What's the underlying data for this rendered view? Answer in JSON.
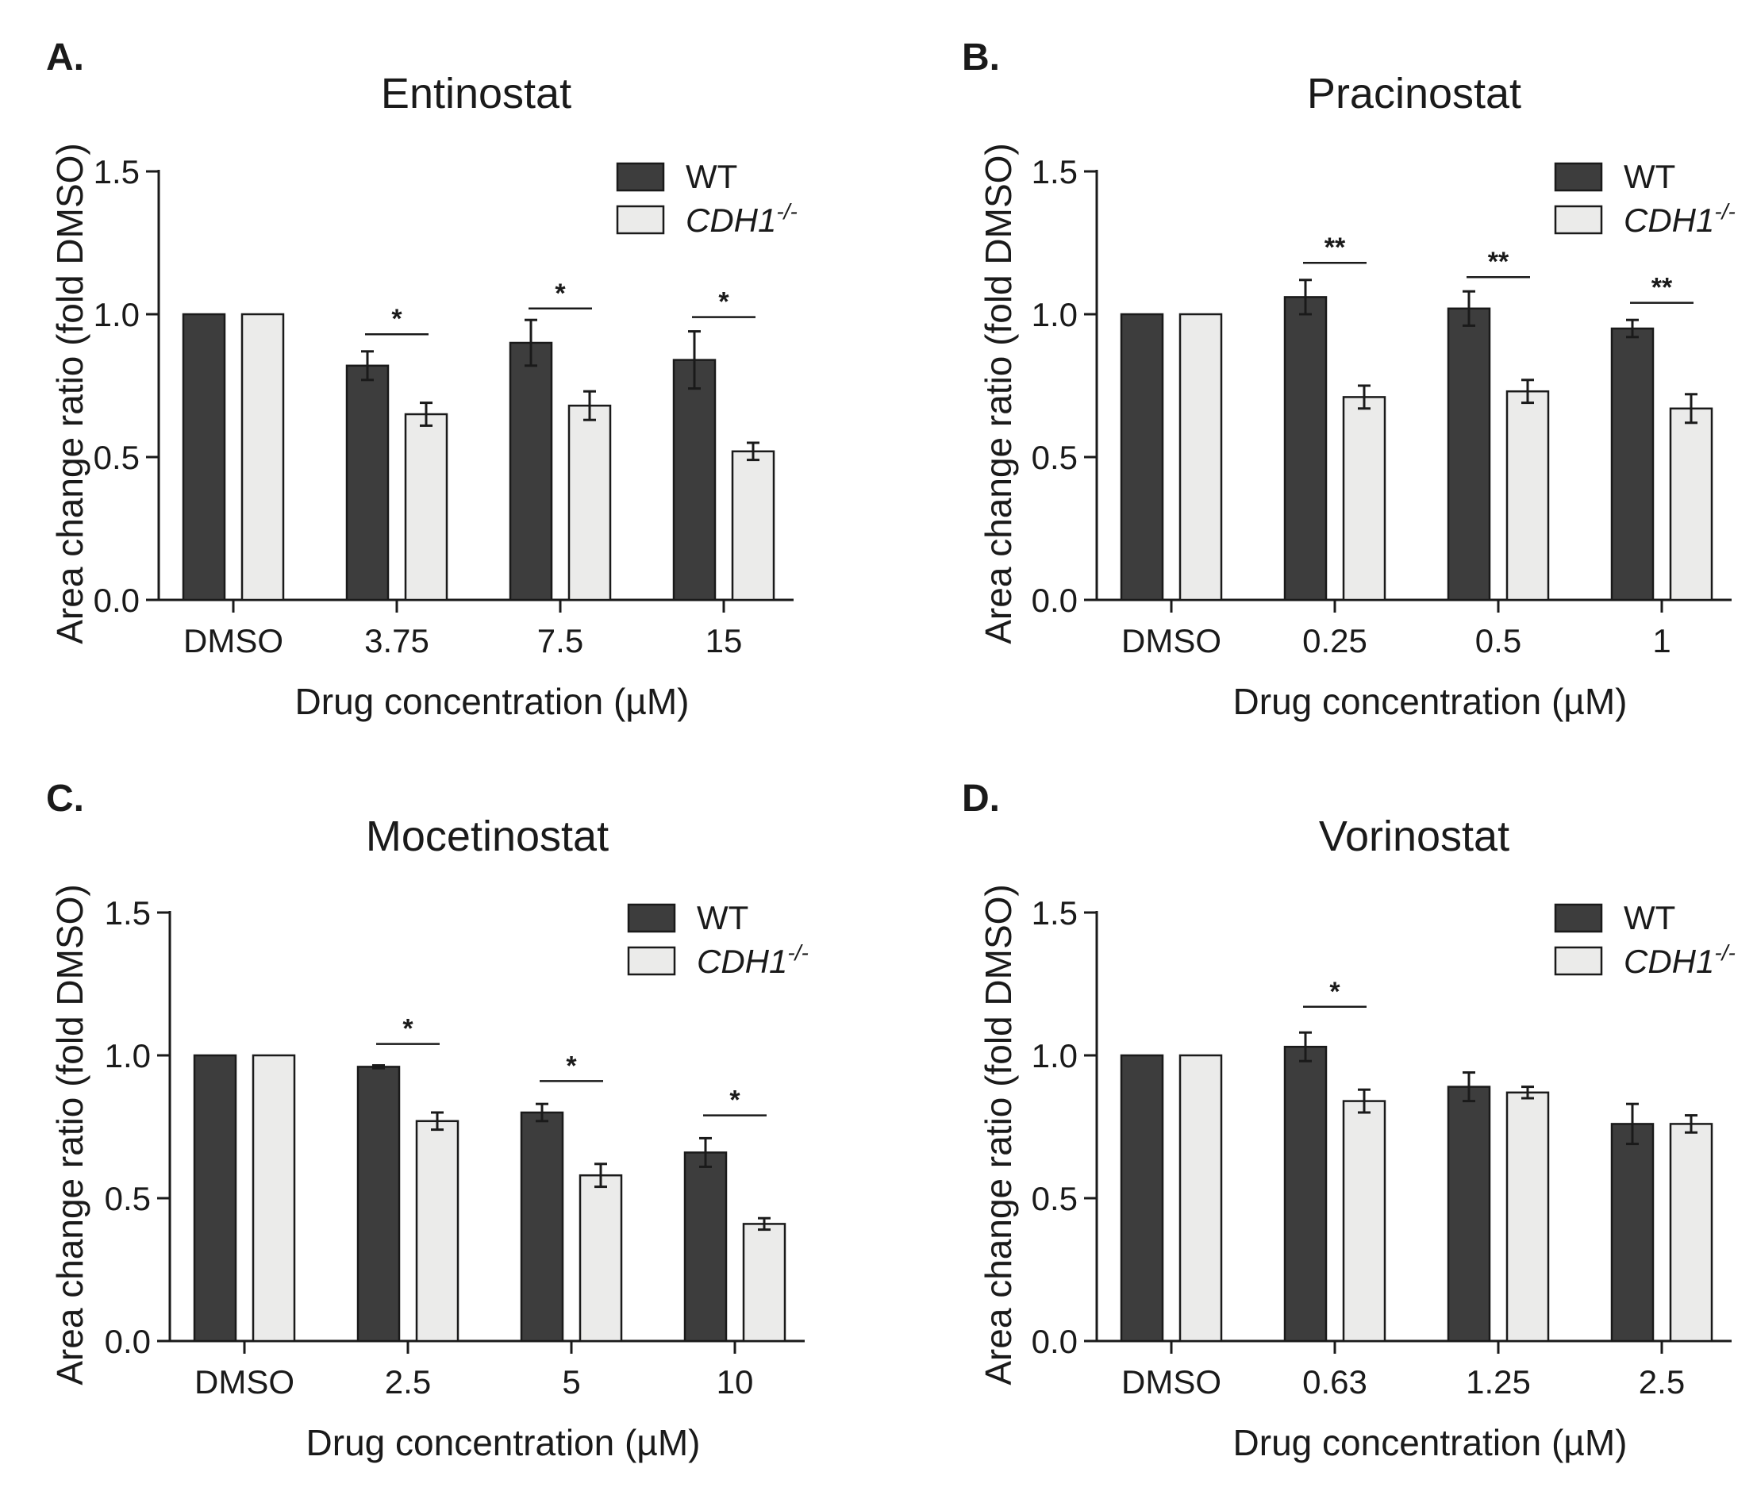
{
  "figure": {
    "colors": {
      "wt": "#3d3d3d",
      "ko": "#ebebea",
      "stroke": "#1a1a1a"
    }
  },
  "chart_data": [
    {
      "panel": "A.",
      "type": "bar",
      "title": "Entinostat",
      "xlabel": "Drug concentration (µM)",
      "ylabel": "Area change ratio (fold DMSO)",
      "ylim": [
        0,
        1.5
      ],
      "yticks": [
        "0.0",
        "0.5",
        "1.0",
        "1.5"
      ],
      "categories": [
        "DMSO",
        "3.75",
        "7.5",
        "15"
      ],
      "legend": {
        "wt": "WT",
        "ko_base": "CDH1",
        "ko_sup": "-/-"
      },
      "series": [
        {
          "name": "WT",
          "values": [
            1.0,
            0.82,
            0.9,
            0.84
          ],
          "errors": [
            0,
            0.05,
            0.08,
            0.1
          ]
        },
        {
          "name": "CDH1-/-",
          "values": [
            1.0,
            0.65,
            0.68,
            0.52
          ],
          "errors": [
            0,
            0.04,
            0.05,
            0.03
          ]
        }
      ],
      "significance": [
        {
          "category": "3.75",
          "label": "*",
          "y": 0.93
        },
        {
          "category": "7.5",
          "label": "*",
          "y": 1.02
        },
        {
          "category": "15",
          "label": "*",
          "y": 0.99
        }
      ]
    },
    {
      "panel": "B.",
      "type": "bar",
      "title": "Pracinostat",
      "xlabel": "Drug concentration (µM)",
      "ylabel": "Area change ratio (fold DMSO)",
      "ylim": [
        0,
        1.5
      ],
      "yticks": [
        "0.0",
        "0.5",
        "1.0",
        "1.5"
      ],
      "categories": [
        "DMSO",
        "0.25",
        "0.5",
        "1"
      ],
      "legend": {
        "wt": "WT",
        "ko_base": "CDH1",
        "ko_sup": "-/-"
      },
      "series": [
        {
          "name": "WT",
          "values": [
            1.0,
            1.06,
            1.02,
            0.95
          ],
          "errors": [
            0,
            0.06,
            0.06,
            0.03
          ]
        },
        {
          "name": "CDH1-/-",
          "values": [
            1.0,
            0.71,
            0.73,
            0.67
          ],
          "errors": [
            0,
            0.04,
            0.04,
            0.05
          ]
        }
      ],
      "significance": [
        {
          "category": "0.25",
          "label": "**",
          "y": 1.18
        },
        {
          "category": "0.5",
          "label": "**",
          "y": 1.13
        },
        {
          "category": "1",
          "label": "**",
          "y": 1.04
        }
      ]
    },
    {
      "panel": "C.",
      "type": "bar",
      "title": "Mocetinostat",
      "xlabel": "Drug concentration (µM)",
      "ylabel": "Area change ratio (fold DMSO)",
      "ylim": [
        0,
        1.5
      ],
      "yticks": [
        "0.0",
        "0.5",
        "1.0",
        "1.5"
      ],
      "categories": [
        "DMSO",
        "2.5",
        "5",
        "10"
      ],
      "legend": {
        "wt": "WT",
        "ko_base": "CDH1",
        "ko_sup": "-/-"
      },
      "series": [
        {
          "name": "WT",
          "values": [
            1.0,
            0.96,
            0.8,
            0.66
          ],
          "errors": [
            0,
            0.005,
            0.03,
            0.05
          ]
        },
        {
          "name": "CDH1-/-",
          "values": [
            1.0,
            0.77,
            0.58,
            0.41
          ],
          "errors": [
            0,
            0.03,
            0.04,
            0.02
          ]
        }
      ],
      "significance": [
        {
          "category": "2.5",
          "label": "*",
          "y": 1.04
        },
        {
          "category": "5",
          "label": "*",
          "y": 0.91
        },
        {
          "category": "10",
          "label": "*",
          "y": 0.79
        }
      ]
    },
    {
      "panel": "D.",
      "type": "bar",
      "title": "Vorinostat",
      "xlabel": "Drug concentration (µM)",
      "ylabel": "Area change ratio (fold DMSO)",
      "ylim": [
        0,
        1.5
      ],
      "yticks": [
        "0.0",
        "0.5",
        "1.0",
        "1.5"
      ],
      "categories": [
        "DMSO",
        "0.63",
        "1.25",
        "2.5"
      ],
      "legend": {
        "wt": "WT",
        "ko_base": "CDH1",
        "ko_sup": "-/-"
      },
      "series": [
        {
          "name": "WT",
          "values": [
            1.0,
            1.03,
            0.89,
            0.76
          ],
          "errors": [
            0,
            0.05,
            0.05,
            0.07
          ]
        },
        {
          "name": "CDH1-/-",
          "values": [
            1.0,
            0.84,
            0.87,
            0.76
          ],
          "errors": [
            0,
            0.04,
            0.02,
            0.03
          ]
        }
      ],
      "significance": [
        {
          "category": "0.63",
          "label": "*",
          "y": 1.17
        }
      ]
    }
  ]
}
